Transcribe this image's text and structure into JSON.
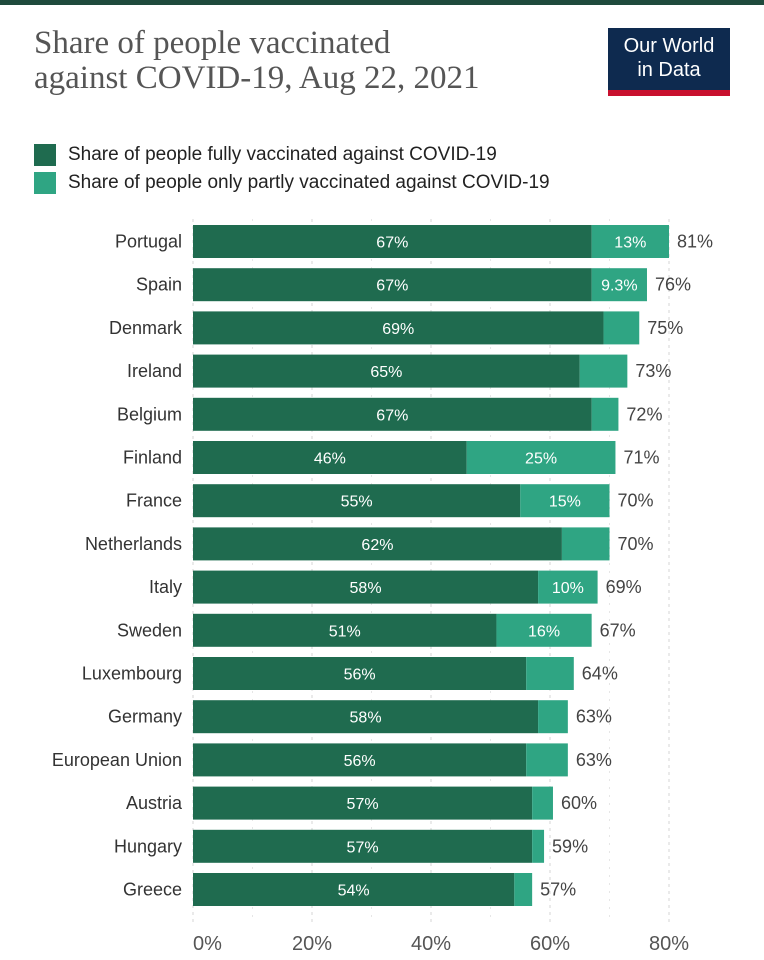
{
  "title_line1": "Share of people vaccinated",
  "title_line2": "against COVID-19, Aug 22, 2021",
  "logo_line1": "Our World",
  "logo_line2": "in Data",
  "colors": {
    "full": "#1f6b4f",
    "partial": "#2fa583",
    "logo_bg": "#0e2a4f",
    "logo_accent": "#c8102e"
  },
  "legend": [
    {
      "label": "Share of people fully vaccinated against COVID-19",
      "color": "#1f6b4f"
    },
    {
      "label": "Share of people only partly vaccinated against COVID-19",
      "color": "#2fa583"
    }
  ],
  "chart_data": {
    "type": "bar",
    "orientation": "horizontal",
    "stacked": true,
    "categories": [
      "Portugal",
      "Spain",
      "Denmark",
      "Ireland",
      "Belgium",
      "Finland",
      "France",
      "Netherlands",
      "Italy",
      "Sweden",
      "Luxembourg",
      "Germany",
      "European Union",
      "Austria",
      "Hungary",
      "Greece"
    ],
    "series": [
      {
        "name": "Share of people fully vaccinated against COVID-19",
        "values": [
          67,
          67,
          69,
          65,
          67,
          46,
          55,
          62,
          58,
          51,
          56,
          58,
          56,
          57,
          57,
          54
        ],
        "labels": [
          "67%",
          "67%",
          "69%",
          "65%",
          "67%",
          "46%",
          "55%",
          "62%",
          "58%",
          "51%",
          "56%",
          "58%",
          "56%",
          "57%",
          "57%",
          "54%"
        ]
      },
      {
        "name": "Share of people only partly vaccinated against COVID-19",
        "values": [
          13,
          9.3,
          6,
          8,
          4.5,
          25,
          15,
          8,
          10,
          16,
          8,
          5,
          7,
          3.5,
          2,
          3
        ],
        "labels": [
          "13%",
          "9.3%",
          "",
          "",
          "",
          "25%",
          "15%",
          "",
          "10%",
          "16%",
          "",
          "",
          "",
          "",
          "",
          ""
        ]
      }
    ],
    "totals": [
      "81%",
      "76%",
      "75%",
      "73%",
      "72%",
      "71%",
      "70%",
      "70%",
      "69%",
      "67%",
      "64%",
      "63%",
      "63%",
      "60%",
      "59%",
      "57%"
    ],
    "xlim": [
      0,
      80
    ],
    "xticks": [
      "0%",
      "20%",
      "40%",
      "60%",
      "80%"
    ],
    "xtick_values": [
      0,
      20,
      40,
      60,
      80
    ],
    "grid": "vertical dotted",
    "legend_position": "top-left"
  }
}
